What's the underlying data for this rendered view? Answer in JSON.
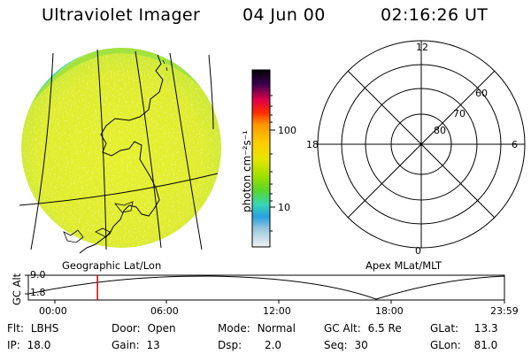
{
  "header": {
    "title": "Ultraviolet Imager",
    "date": "04 Jun 00",
    "time": "02:16:26 UT"
  },
  "geo_panel": {
    "caption": "Geographic Lat/Lon"
  },
  "colorbar": {
    "unit_label": "photon cm⁻²s⁻¹",
    "tick_labels": [
      "100",
      "10"
    ]
  },
  "polar_panel": {
    "caption": "Apex MLat/MLT",
    "mlt_labels": [
      "12",
      "18",
      "6",
      "0"
    ],
    "lat_labels": [
      "60",
      "70",
      "80"
    ]
  },
  "timeline": {
    "ylabel": "GC Alt",
    "y_ticks": [
      "9.0",
      "1.8"
    ],
    "x_ticks": [
      "00:00",
      "06:00",
      "12:00",
      "18:00",
      "23:59"
    ],
    "current_time_fraction": 0.0947
  },
  "info": {
    "rows": [
      [
        {
          "label": "Flt:",
          "value": "LBHS"
        },
        {
          "label": "Door:",
          "value": "Open"
        },
        {
          "label": "Mode:",
          "value": "Normal"
        },
        {
          "label": "GC Alt:",
          "value": "6.5 Re"
        },
        {
          "label": "GLat:",
          "value": "13.3"
        }
      ],
      [
        {
          "label": "IP:",
          "value": "18.0"
        },
        {
          "label": "Gain:",
          "value": "13"
        },
        {
          "label": "Dsp:",
          "value": "2.0"
        },
        {
          "label": "Seq:",
          "value": "30"
        },
        {
          "label": "GLon:",
          "value": "81.0"
        }
      ]
    ]
  },
  "colors": {
    "disk_base": "#e2ee2a",
    "disk_light": "#f0f59a",
    "edge_cyan": "#39d7c4",
    "edge_green": "#8fdd3d",
    "timeline_marker": "#cc0000"
  }
}
